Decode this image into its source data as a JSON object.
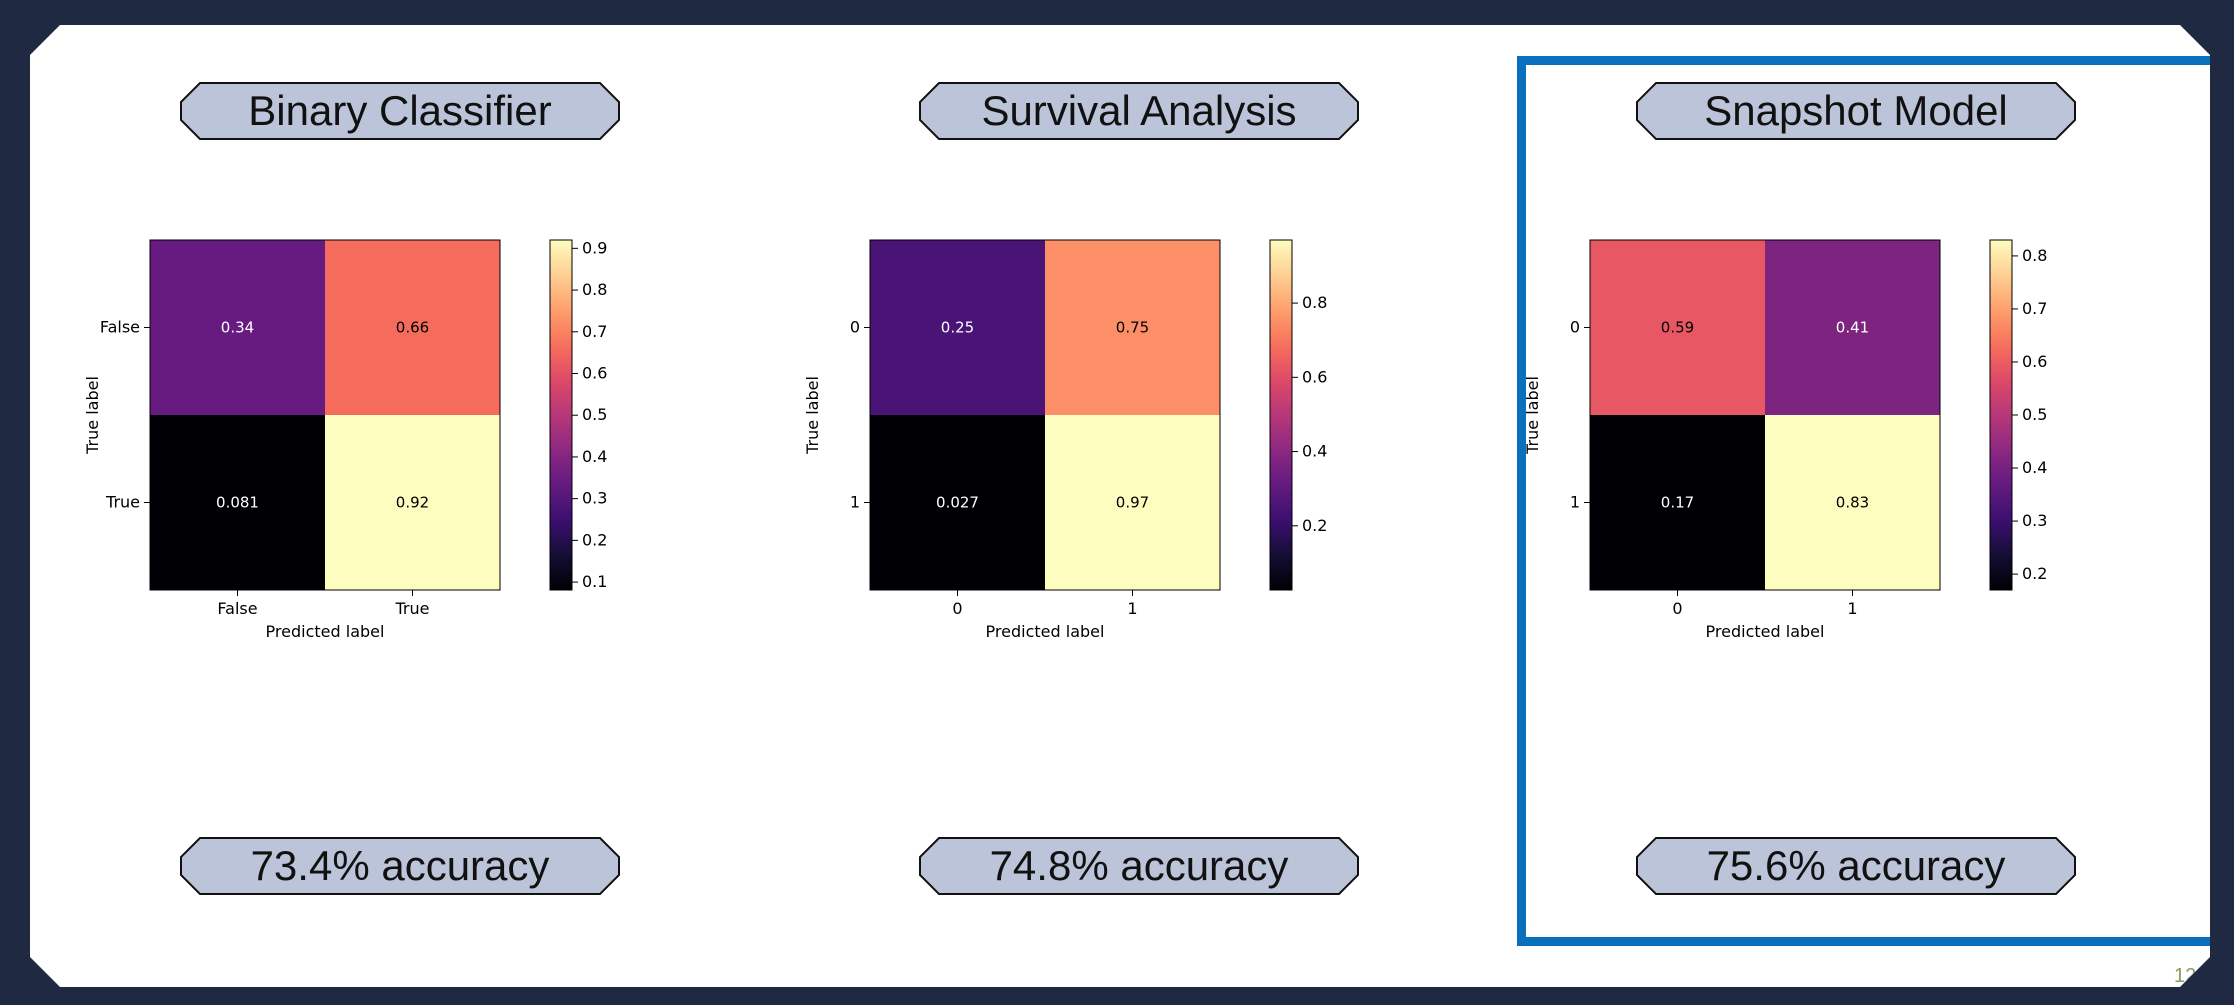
{
  "page_number": "12",
  "colors": {
    "background": "#1f2941",
    "pill_fill": "#bbc4d8",
    "highlight_border": "#0a70bd",
    "colormap": "magma"
  },
  "panels": [
    {
      "title": "Binary Classifier",
      "accuracy": "73.4% accuracy"
    },
    {
      "title": "Survival Analysis",
      "accuracy": "74.8% accuracy"
    },
    {
      "title": "Snapshot Model",
      "accuracy": "75.6% accuracy",
      "highlighted": true
    }
  ],
  "chart_data": [
    {
      "type": "heatmap",
      "xlabel": "Predicted label",
      "ylabel": "True label",
      "x_categories": [
        "False",
        "True"
      ],
      "y_categories": [
        "False",
        "True"
      ],
      "values": [
        [
          0.34,
          0.66
        ],
        [
          0.081,
          0.92
        ]
      ],
      "colorbar_range": [
        0.081,
        0.92
      ],
      "colorbar_ticks": [
        0.1,
        0.2,
        0.3,
        0.4,
        0.5,
        0.6,
        0.7,
        0.8,
        0.9
      ],
      "colormap": "magma"
    },
    {
      "type": "heatmap",
      "xlabel": "Predicted label",
      "ylabel": "True label",
      "x_categories": [
        "0",
        "1"
      ],
      "y_categories": [
        "0",
        "1"
      ],
      "values": [
        [
          0.25,
          0.75
        ],
        [
          0.027,
          0.97
        ]
      ],
      "colorbar_range": [
        0.027,
        0.97
      ],
      "colorbar_ticks": [
        0.2,
        0.4,
        0.6,
        0.8
      ],
      "colormap": "magma"
    },
    {
      "type": "heatmap",
      "xlabel": "Predicted label",
      "ylabel": "True label",
      "x_categories": [
        "0",
        "1"
      ],
      "y_categories": [
        "0",
        "1"
      ],
      "values": [
        [
          0.59,
          0.41
        ],
        [
          0.17,
          0.83
        ]
      ],
      "colorbar_range": [
        0.17,
        0.83
      ],
      "colorbar_ticks": [
        0.2,
        0.3,
        0.4,
        0.5,
        0.6,
        0.7,
        0.8
      ],
      "colormap": "magma"
    }
  ]
}
